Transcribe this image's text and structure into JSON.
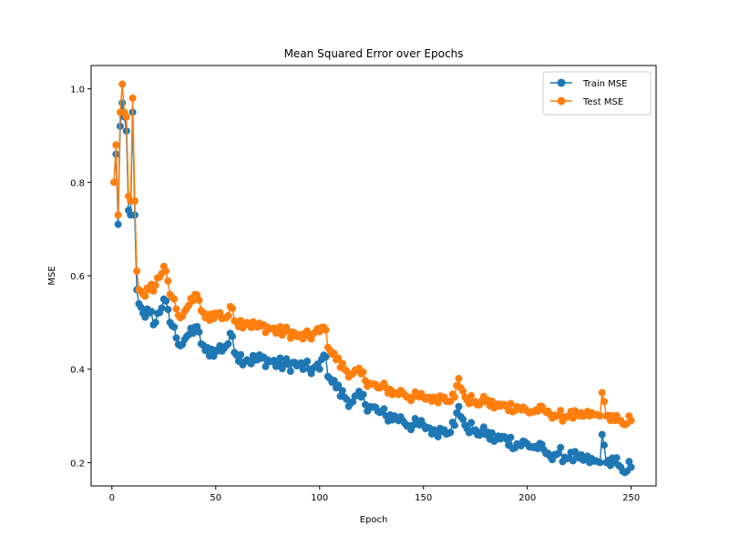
{
  "chart_data": {
    "type": "line",
    "title": "Mean Squared Error over Epochs",
    "xlabel": "Epoch",
    "ylabel": "MSE",
    "xlim": [
      -10,
      262
    ],
    "ylim": [
      0.15,
      1.05
    ],
    "xticks": [
      0,
      50,
      100,
      150,
      200,
      250
    ],
    "yticks": [
      0.2,
      0.4,
      0.6,
      0.8,
      1.0
    ],
    "xtick_labels": [
      "0",
      "50",
      "100",
      "150",
      "200",
      "250"
    ],
    "ytick_labels": [
      "0.2",
      "0.4",
      "0.6",
      "0.8",
      "1.0"
    ],
    "grid": false,
    "legend_position": "top-right",
    "series": [
      {
        "name": "Train MSE",
        "color": "#1f77b4",
        "marker": "circle",
        "keypoints": [
          [
            1,
            0.8
          ],
          [
            2,
            0.86
          ],
          [
            3,
            0.71
          ],
          [
            4,
            0.92
          ],
          [
            5,
            0.97
          ],
          [
            6,
            0.94
          ],
          [
            7,
            0.91
          ],
          [
            8,
            0.74
          ],
          [
            9,
            0.73
          ],
          [
            10,
            0.95
          ],
          [
            11,
            0.73
          ],
          [
            12,
            0.57
          ],
          [
            13,
            0.54
          ],
          [
            15,
            0.52
          ],
          [
            18,
            0.52
          ],
          [
            21,
            0.5
          ],
          [
            25,
            0.55
          ],
          [
            28,
            0.5
          ],
          [
            30,
            0.49
          ],
          [
            33,
            0.45
          ],
          [
            36,
            0.47
          ],
          [
            40,
            0.49
          ],
          [
            45,
            0.44
          ],
          [
            50,
            0.44
          ],
          [
            55,
            0.45
          ],
          [
            58,
            0.47
          ],
          [
            60,
            0.43
          ],
          [
            65,
            0.42
          ],
          [
            70,
            0.42
          ],
          [
            75,
            0.42
          ],
          [
            80,
            0.41
          ],
          [
            85,
            0.41
          ],
          [
            90,
            0.41
          ],
          [
            95,
            0.4
          ],
          [
            100,
            0.4
          ],
          [
            102,
            0.43
          ],
          [
            105,
            0.38
          ],
          [
            108,
            0.36
          ],
          [
            112,
            0.34
          ],
          [
            116,
            0.33
          ],
          [
            120,
            0.34
          ],
          [
            124,
            0.32
          ],
          [
            128,
            0.31
          ],
          [
            132,
            0.3
          ],
          [
            136,
            0.3
          ],
          [
            140,
            0.29
          ],
          [
            145,
            0.28
          ],
          [
            150,
            0.28
          ],
          [
            155,
            0.27
          ],
          [
            160,
            0.27
          ],
          [
            165,
            0.28
          ],
          [
            167,
            0.32
          ],
          [
            170,
            0.28
          ],
          [
            175,
            0.27
          ],
          [
            180,
            0.26
          ],
          [
            185,
            0.25
          ],
          [
            190,
            0.25
          ],
          [
            195,
            0.24
          ],
          [
            200,
            0.24
          ],
          [
            205,
            0.23
          ],
          [
            210,
            0.22
          ],
          [
            215,
            0.22
          ],
          [
            220,
            0.21
          ],
          [
            225,
            0.21
          ],
          [
            230,
            0.2
          ],
          [
            235,
            0.2
          ],
          [
            236,
            0.26
          ],
          [
            238,
            0.2
          ],
          [
            242,
            0.2
          ],
          [
            245,
            0.19
          ],
          [
            250,
            0.19
          ]
        ]
      },
      {
        "name": "Test MSE",
        "color": "#ff7f0e",
        "marker": "circle",
        "keypoints": [
          [
            1,
            0.8
          ],
          [
            2,
            0.88
          ],
          [
            3,
            0.73
          ],
          [
            4,
            0.95
          ],
          [
            5,
            1.01
          ],
          [
            6,
            0.95
          ],
          [
            7,
            0.94
          ],
          [
            8,
            0.77
          ],
          [
            9,
            0.76
          ],
          [
            10,
            0.98
          ],
          [
            11,
            0.76
          ],
          [
            12,
            0.61
          ],
          [
            13,
            0.57
          ],
          [
            15,
            0.56
          ],
          [
            18,
            0.57
          ],
          [
            21,
            0.58
          ],
          [
            25,
            0.62
          ],
          [
            28,
            0.56
          ],
          [
            30,
            0.55
          ],
          [
            33,
            0.51
          ],
          [
            36,
            0.53
          ],
          [
            40,
            0.56
          ],
          [
            45,
            0.51
          ],
          [
            50,
            0.52
          ],
          [
            55,
            0.51
          ],
          [
            58,
            0.53
          ],
          [
            60,
            0.5
          ],
          [
            65,
            0.5
          ],
          [
            70,
            0.49
          ],
          [
            75,
            0.49
          ],
          [
            80,
            0.48
          ],
          [
            85,
            0.48
          ],
          [
            90,
            0.47
          ],
          [
            95,
            0.47
          ],
          [
            100,
            0.48
          ],
          [
            102,
            0.49
          ],
          [
            105,
            0.44
          ],
          [
            108,
            0.42
          ],
          [
            112,
            0.4
          ],
          [
            116,
            0.39
          ],
          [
            120,
            0.39
          ],
          [
            124,
            0.37
          ],
          [
            128,
            0.36
          ],
          [
            132,
            0.36
          ],
          [
            136,
            0.35
          ],
          [
            140,
            0.35
          ],
          [
            145,
            0.34
          ],
          [
            150,
            0.34
          ],
          [
            155,
            0.34
          ],
          [
            160,
            0.34
          ],
          [
            165,
            0.34
          ],
          [
            167,
            0.38
          ],
          [
            170,
            0.34
          ],
          [
            175,
            0.33
          ],
          [
            180,
            0.33
          ],
          [
            185,
            0.32
          ],
          [
            190,
            0.32
          ],
          [
            195,
            0.32
          ],
          [
            200,
            0.31
          ],
          [
            205,
            0.31
          ],
          [
            210,
            0.31
          ],
          [
            215,
            0.3
          ],
          [
            220,
            0.3
          ],
          [
            225,
            0.3
          ],
          [
            230,
            0.3
          ],
          [
            235,
            0.3
          ],
          [
            236,
            0.35
          ],
          [
            238,
            0.3
          ],
          [
            242,
            0.29
          ],
          [
            245,
            0.29
          ],
          [
            250,
            0.29
          ]
        ]
      }
    ]
  }
}
